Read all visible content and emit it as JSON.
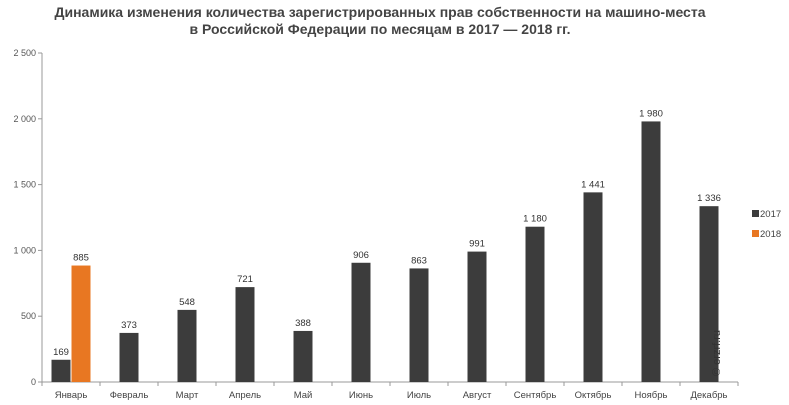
{
  "chart_data": {
    "type": "bar",
    "title_lines": [
      "Динамика изменения количества зарегистрированных прав собственности на машино-места",
      "в Российской Федерации по месяцам в 2017 — 2018 гг."
    ],
    "categories": [
      "Январь",
      "Февраль",
      "Март",
      "Апрель",
      "Май",
      "Июнь",
      "Июль",
      "Август",
      "Сентябрь",
      "Октябрь",
      "Ноябрь",
      "Декабрь"
    ],
    "series": [
      {
        "name": "2017",
        "color": "#3c3c3c",
        "label_color": "#333333",
        "values": [
          169,
          373,
          548,
          721,
          388,
          906,
          863,
          991,
          1180,
          1441,
          1980,
          1336
        ],
        "labels": [
          "169",
          "373",
          "548",
          "721",
          "388",
          "906",
          "863",
          "991",
          "1 180",
          "1 441",
          "1 980",
          "1 336"
        ]
      },
      {
        "name": "2018",
        "color": "#e87722",
        "label_color": "#e87722",
        "values": [
          885,
          null,
          null,
          null,
          null,
          null,
          null,
          null,
          null,
          null,
          null,
          null
        ],
        "labels": [
          "885",
          "",
          "",
          "",
          "",
          "",
          "",
          "",
          "",
          "",
          "",
          ""
        ]
      }
    ],
    "y_ticks": [
      0,
      500,
      1000,
      1500,
      2000,
      2500
    ],
    "y_tick_labels": [
      "0",
      "500",
      "1 000",
      "1 500",
      "2 000",
      "2 500"
    ],
    "ylim": [
      0,
      2500
    ],
    "grid": false,
    "legend_position": "right",
    "watermark": "© erzrf.ru"
  }
}
